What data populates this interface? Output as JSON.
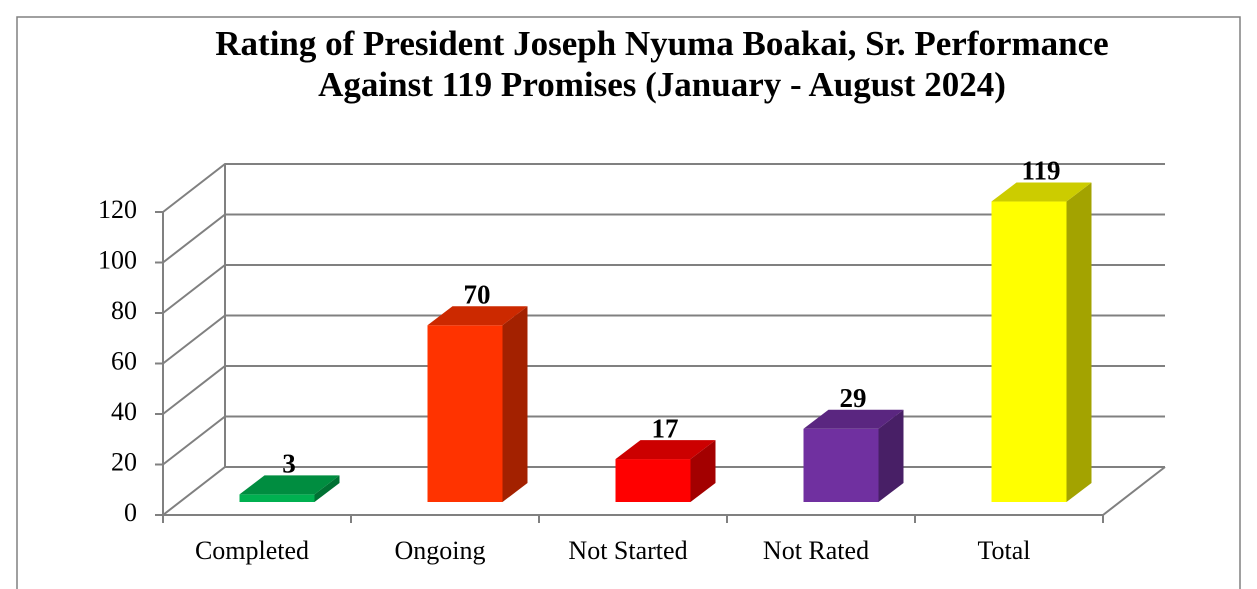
{
  "chart_data": {
    "type": "bar3d",
    "title": [
      "Rating of President Joseph Nyuma Boakai, Sr. Performance",
      "Against 119 Promises (January - August 2024)"
    ],
    "categories": [
      "Completed",
      "Ongoing",
      "Not Started",
      "Not Rated",
      "Total"
    ],
    "values": [
      3,
      70,
      17,
      29,
      119
    ],
    "colors": [
      "#00b050",
      "#ff3300",
      "#ff0000",
      "#7030a0",
      "#ffff00"
    ],
    "ylim": [
      0,
      120
    ],
    "yticks": [
      0,
      20,
      40,
      60,
      80,
      100,
      120
    ],
    "grid": true
  }
}
